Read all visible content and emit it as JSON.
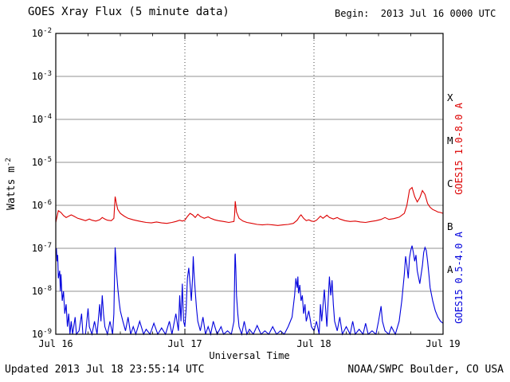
{
  "header": {
    "title": "GOES Xray Flux (5 minute data)",
    "begin_label": "Begin:  2013 Jul 16 0000 UTC"
  },
  "footer": {
    "updated": "Updated 2013 Jul 18 23:55:14 UTC",
    "source": "NOAA/SWPC Boulder, CO USA"
  },
  "chart_data": {
    "type": "line",
    "title": "GOES Xray Flux (5 minute data)",
    "xlabel": "Universal Time",
    "ylabel": {
      "base": "Watts m",
      "exp": "-2"
    },
    "x_ticks": [
      "Jul 16",
      "Jul 17",
      "Jul 18",
      "Jul 19"
    ],
    "x_range_days": [
      0,
      3
    ],
    "y_exponents": [
      -2,
      -3,
      -4,
      -5,
      -6,
      -7,
      -8,
      -9
    ],
    "ylim": [
      1e-09,
      0.01
    ],
    "v_dotted_days": [
      1,
      2
    ],
    "grid": "horizontal solid each decade, vertical dotted at day boundaries",
    "legend_position": "right-edge rotated labels",
    "flare_classes": [
      {
        "label": "X",
        "log_center": -3.5
      },
      {
        "label": "M",
        "log_center": -4.5
      },
      {
        "label": "C",
        "log_center": -5.5
      },
      {
        "label": "B",
        "log_center": -6.5
      },
      {
        "label": "A",
        "log_center": -7.5
      }
    ],
    "series": [
      {
        "name": "GOES15 1.0-8.0 A",
        "color": "#dd0000",
        "points": [
          [
            0.0,
            4e-07
          ],
          [
            0.01,
            5.5e-07
          ],
          [
            0.02,
            7.5e-07
          ],
          [
            0.04,
            6.8e-07
          ],
          [
            0.06,
            5.8e-07
          ],
          [
            0.08,
            5.2e-07
          ],
          [
            0.1,
            5.6e-07
          ],
          [
            0.12,
            6e-07
          ],
          [
            0.14,
            5.6e-07
          ],
          [
            0.17,
            5e-07
          ],
          [
            0.2,
            4.7e-07
          ],
          [
            0.23,
            4.4e-07
          ],
          [
            0.26,
            4.8e-07
          ],
          [
            0.28,
            4.5e-07
          ],
          [
            0.31,
            4.3e-07
          ],
          [
            0.34,
            4.6e-07
          ],
          [
            0.36,
            5.2e-07
          ],
          [
            0.38,
            4.8e-07
          ],
          [
            0.4,
            4.5e-07
          ],
          [
            0.43,
            4.4e-07
          ],
          [
            0.45,
            5e-07
          ],
          [
            0.455,
            9e-07
          ],
          [
            0.46,
            1.6e-06
          ],
          [
            0.47,
            1.1e-06
          ],
          [
            0.48,
            8e-07
          ],
          [
            0.5,
            6.5e-07
          ],
          [
            0.53,
            5.6e-07
          ],
          [
            0.56,
            5e-07
          ],
          [
            0.6,
            4.6e-07
          ],
          [
            0.63,
            4.4e-07
          ],
          [
            0.66,
            4.2e-07
          ],
          [
            0.7,
            4e-07
          ],
          [
            0.74,
            3.9e-07
          ],
          [
            0.78,
            4.1e-07
          ],
          [
            0.82,
            3.9e-07
          ],
          [
            0.86,
            3.8e-07
          ],
          [
            0.9,
            4e-07
          ],
          [
            0.93,
            4.2e-07
          ],
          [
            0.96,
            4.5e-07
          ],
          [
            0.98,
            4.3e-07
          ],
          [
            1.0,
            4.5e-07
          ],
          [
            1.02,
            5.5e-07
          ],
          [
            1.04,
            6.5e-07
          ],
          [
            1.06,
            6e-07
          ],
          [
            1.08,
            5.2e-07
          ],
          [
            1.1,
            6.2e-07
          ],
          [
            1.12,
            5.5e-07
          ],
          [
            1.15,
            5e-07
          ],
          [
            1.18,
            5.4e-07
          ],
          [
            1.2,
            5e-07
          ],
          [
            1.23,
            4.6e-07
          ],
          [
            1.26,
            4.4e-07
          ],
          [
            1.3,
            4.2e-07
          ],
          [
            1.34,
            4e-07
          ],
          [
            1.38,
            4.2e-07
          ],
          [
            1.385,
            6e-07
          ],
          [
            1.39,
            1.25e-06
          ],
          [
            1.4,
            7e-07
          ],
          [
            1.42,
            5e-07
          ],
          [
            1.45,
            4.3e-07
          ],
          [
            1.48,
            4e-07
          ],
          [
            1.52,
            3.8e-07
          ],
          [
            1.56,
            3.6e-07
          ],
          [
            1.6,
            3.5e-07
          ],
          [
            1.64,
            3.6e-07
          ],
          [
            1.68,
            3.5e-07
          ],
          [
            1.72,
            3.4e-07
          ],
          [
            1.76,
            3.5e-07
          ],
          [
            1.8,
            3.6e-07
          ],
          [
            1.84,
            3.8e-07
          ],
          [
            1.87,
            4.5e-07
          ],
          [
            1.89,
            5.6e-07
          ],
          [
            1.9,
            6e-07
          ],
          [
            1.92,
            5e-07
          ],
          [
            1.94,
            4.4e-07
          ],
          [
            1.96,
            4.6e-07
          ],
          [
            1.98,
            4.3e-07
          ],
          [
            2.0,
            4.2e-07
          ],
          [
            2.02,
            4.5e-07
          ],
          [
            2.05,
            5.6e-07
          ],
          [
            2.07,
            5e-07
          ],
          [
            2.1,
            5.9e-07
          ],
          [
            2.12,
            5.2e-07
          ],
          [
            2.15,
            4.8e-07
          ],
          [
            2.18,
            5.2e-07
          ],
          [
            2.2,
            4.8e-07
          ],
          [
            2.24,
            4.4e-07
          ],
          [
            2.28,
            4.2e-07
          ],
          [
            2.32,
            4.3e-07
          ],
          [
            2.36,
            4.1e-07
          ],
          [
            2.4,
            4e-07
          ],
          [
            2.44,
            4.2e-07
          ],
          [
            2.48,
            4.4e-07
          ],
          [
            2.52,
            4.7e-07
          ],
          [
            2.55,
            5.2e-07
          ],
          [
            2.58,
            4.7e-07
          ],
          [
            2.62,
            4.9e-07
          ],
          [
            2.66,
            5.3e-07
          ],
          [
            2.7,
            6.5e-07
          ],
          [
            2.72,
            1e-06
          ],
          [
            2.74,
            2.3e-06
          ],
          [
            2.76,
            2.6e-06
          ],
          [
            2.78,
            1.6e-06
          ],
          [
            2.8,
            1.2e-06
          ],
          [
            2.82,
            1.5e-06
          ],
          [
            2.84,
            2.2e-06
          ],
          [
            2.86,
            1.8e-06
          ],
          [
            2.88,
            1.1e-06
          ],
          [
            2.9,
            9e-07
          ],
          [
            2.92,
            8e-07
          ],
          [
            2.94,
            7.5e-07
          ],
          [
            2.96,
            7e-07
          ],
          [
            2.98,
            6.8e-07
          ],
          [
            3.0,
            6.5e-07
          ]
        ]
      },
      {
        "name": "GOES15 0.5-4.0 A",
        "color": "#0000dd",
        "points": [
          [
            0.0,
            8e-08
          ],
          [
            0.005,
            1e-07
          ],
          [
            0.01,
            5e-08
          ],
          [
            0.015,
            7e-08
          ],
          [
            0.02,
            2e-08
          ],
          [
            0.03,
            3e-08
          ],
          [
            0.035,
            1e-08
          ],
          [
            0.04,
            2.5e-08
          ],
          [
            0.05,
            6e-09
          ],
          [
            0.06,
            1e-08
          ],
          [
            0.07,
            3e-09
          ],
          [
            0.08,
            5e-09
          ],
          [
            0.09,
            1.5e-09
          ],
          [
            0.1,
            3e-09
          ],
          [
            0.11,
            1e-09
          ],
          [
            0.12,
            2e-09
          ],
          [
            0.13,
            1e-09
          ],
          [
            0.15,
            2.5e-09
          ],
          [
            0.16,
            1e-09
          ],
          [
            0.18,
            1.2e-09
          ],
          [
            0.2,
            3e-09
          ],
          [
            0.21,
            1e-09
          ],
          [
            0.23,
            1e-09
          ],
          [
            0.25,
            4e-09
          ],
          [
            0.26,
            1.5e-09
          ],
          [
            0.28,
            1e-09
          ],
          [
            0.3,
            2e-09
          ],
          [
            0.32,
            1e-09
          ],
          [
            0.34,
            5e-09
          ],
          [
            0.35,
            2e-09
          ],
          [
            0.36,
            8e-09
          ],
          [
            0.37,
            3e-09
          ],
          [
            0.38,
            1.5e-09
          ],
          [
            0.4,
            1e-09
          ],
          [
            0.42,
            2e-09
          ],
          [
            0.44,
            1e-09
          ],
          [
            0.45,
            3e-09
          ],
          [
            0.455,
            2e-08
          ],
          [
            0.46,
            1.05e-07
          ],
          [
            0.465,
            6e-08
          ],
          [
            0.47,
            3e-08
          ],
          [
            0.48,
            1.2e-08
          ],
          [
            0.49,
            6e-09
          ],
          [
            0.5,
            3.5e-09
          ],
          [
            0.52,
            2e-09
          ],
          [
            0.54,
            1.2e-09
          ],
          [
            0.56,
            2.5e-09
          ],
          [
            0.58,
            1e-09
          ],
          [
            0.6,
            1.5e-09
          ],
          [
            0.62,
            1e-09
          ],
          [
            0.65,
            2e-09
          ],
          [
            0.68,
            1e-09
          ],
          [
            0.7,
            1.3e-09
          ],
          [
            0.73,
            1e-09
          ],
          [
            0.76,
            1.8e-09
          ],
          [
            0.79,
            1e-09
          ],
          [
            0.82,
            1.4e-09
          ],
          [
            0.85,
            1e-09
          ],
          [
            0.88,
            2e-09
          ],
          [
            0.9,
            1e-09
          ],
          [
            0.93,
            3e-09
          ],
          [
            0.95,
            1.2e-09
          ],
          [
            0.96,
            8e-09
          ],
          [
            0.97,
            2e-09
          ],
          [
            0.98,
            1.5e-08
          ],
          [
            0.985,
            5e-09
          ],
          [
            0.99,
            2e-09
          ],
          [
            1.0,
            1.5e-09
          ],
          [
            1.01,
            4e-09
          ],
          [
            1.02,
            2e-08
          ],
          [
            1.03,
            3.5e-08
          ],
          [
            1.04,
            1.5e-08
          ],
          [
            1.05,
            6e-09
          ],
          [
            1.06,
            2.2e-08
          ],
          [
            1.065,
            6.5e-08
          ],
          [
            1.07,
            3e-08
          ],
          [
            1.08,
            1e-08
          ],
          [
            1.09,
            4e-09
          ],
          [
            1.1,
            2e-09
          ],
          [
            1.12,
            1.2e-09
          ],
          [
            1.14,
            2.5e-09
          ],
          [
            1.16,
            1e-09
          ],
          [
            1.18,
            1.5e-09
          ],
          [
            1.2,
            1e-09
          ],
          [
            1.22,
            2e-09
          ],
          [
            1.25,
            1e-09
          ],
          [
            1.28,
            1.5e-09
          ],
          [
            1.3,
            1e-09
          ],
          [
            1.33,
            1.2e-09
          ],
          [
            1.36,
            1e-09
          ],
          [
            1.38,
            2e-09
          ],
          [
            1.388,
            7e-08
          ],
          [
            1.39,
            7.5e-08
          ],
          [
            1.395,
            3e-08
          ],
          [
            1.4,
            8e-09
          ],
          [
            1.41,
            3e-09
          ],
          [
            1.42,
            1.5e-09
          ],
          [
            1.44,
            1e-09
          ],
          [
            1.46,
            2e-09
          ],
          [
            1.48,
            1e-09
          ],
          [
            1.5,
            1.3e-09
          ],
          [
            1.53,
            1e-09
          ],
          [
            1.56,
            1.6e-09
          ],
          [
            1.59,
            1e-09
          ],
          [
            1.62,
            1.2e-09
          ],
          [
            1.65,
            1e-09
          ],
          [
            1.68,
            1.5e-09
          ],
          [
            1.71,
            1e-09
          ],
          [
            1.74,
            1.2e-09
          ],
          [
            1.77,
            1e-09
          ],
          [
            1.8,
            1.5e-09
          ],
          [
            1.83,
            2.5e-09
          ],
          [
            1.85,
            8e-09
          ],
          [
            1.86,
            2e-08
          ],
          [
            1.87,
            1.2e-08
          ],
          [
            1.875,
            2.2e-08
          ],
          [
            1.88,
            9e-09
          ],
          [
            1.89,
            1.4e-08
          ],
          [
            1.9,
            6e-09
          ],
          [
            1.91,
            8e-09
          ],
          [
            1.92,
            3e-09
          ],
          [
            1.93,
            5e-09
          ],
          [
            1.94,
            2e-09
          ],
          [
            1.96,
            3.5e-09
          ],
          [
            1.98,
            1.5e-09
          ],
          [
            2.0,
            1.2e-09
          ],
          [
            2.02,
            2e-09
          ],
          [
            2.04,
            1e-09
          ],
          [
            2.05,
            5e-09
          ],
          [
            2.06,
            2e-09
          ],
          [
            2.08,
            1.1e-08
          ],
          [
            2.09,
            4e-09
          ],
          [
            2.1,
            1.5e-09
          ],
          [
            2.12,
            2.2e-08
          ],
          [
            2.13,
            8e-09
          ],
          [
            2.14,
            1.8e-08
          ],
          [
            2.15,
            5e-09
          ],
          [
            2.16,
            2e-09
          ],
          [
            2.18,
            1.2e-09
          ],
          [
            2.2,
            2.5e-09
          ],
          [
            2.22,
            1e-09
          ],
          [
            2.25,
            1.5e-09
          ],
          [
            2.28,
            1e-09
          ],
          [
            2.3,
            2e-09
          ],
          [
            2.32,
            1e-09
          ],
          [
            2.35,
            1.3e-09
          ],
          [
            2.38,
            1e-09
          ],
          [
            2.4,
            1.8e-09
          ],
          [
            2.42,
            1e-09
          ],
          [
            2.45,
            1.2e-09
          ],
          [
            2.48,
            1e-09
          ],
          [
            2.5,
            2e-09
          ],
          [
            2.52,
            4.5e-09
          ],
          [
            2.53,
            2e-09
          ],
          [
            2.55,
            1.2e-09
          ],
          [
            2.58,
            1e-09
          ],
          [
            2.6,
            1.5e-09
          ],
          [
            2.63,
            1e-09
          ],
          [
            2.66,
            2e-09
          ],
          [
            2.68,
            6e-09
          ],
          [
            2.7,
            2.5e-08
          ],
          [
            2.71,
            6.5e-08
          ],
          [
            2.72,
            4e-08
          ],
          [
            2.73,
            2e-08
          ],
          [
            2.74,
            6e-08
          ],
          [
            2.75,
            9e-08
          ],
          [
            2.76,
            1.15e-07
          ],
          [
            2.77,
            8e-08
          ],
          [
            2.78,
            5e-08
          ],
          [
            2.79,
            7e-08
          ],
          [
            2.8,
            3e-08
          ],
          [
            2.82,
            1.5e-08
          ],
          [
            2.84,
            4e-08
          ],
          [
            2.85,
            8e-08
          ],
          [
            2.86,
            1.05e-07
          ],
          [
            2.87,
            9e-08
          ],
          [
            2.88,
            5e-08
          ],
          [
            2.89,
            2.5e-08
          ],
          [
            2.9,
            1.2e-08
          ],
          [
            2.92,
            6e-09
          ],
          [
            2.94,
            3.5e-09
          ],
          [
            2.96,
            2.5e-09
          ],
          [
            2.98,
            2e-09
          ],
          [
            3.0,
            1.8e-09
          ]
        ]
      }
    ]
  }
}
